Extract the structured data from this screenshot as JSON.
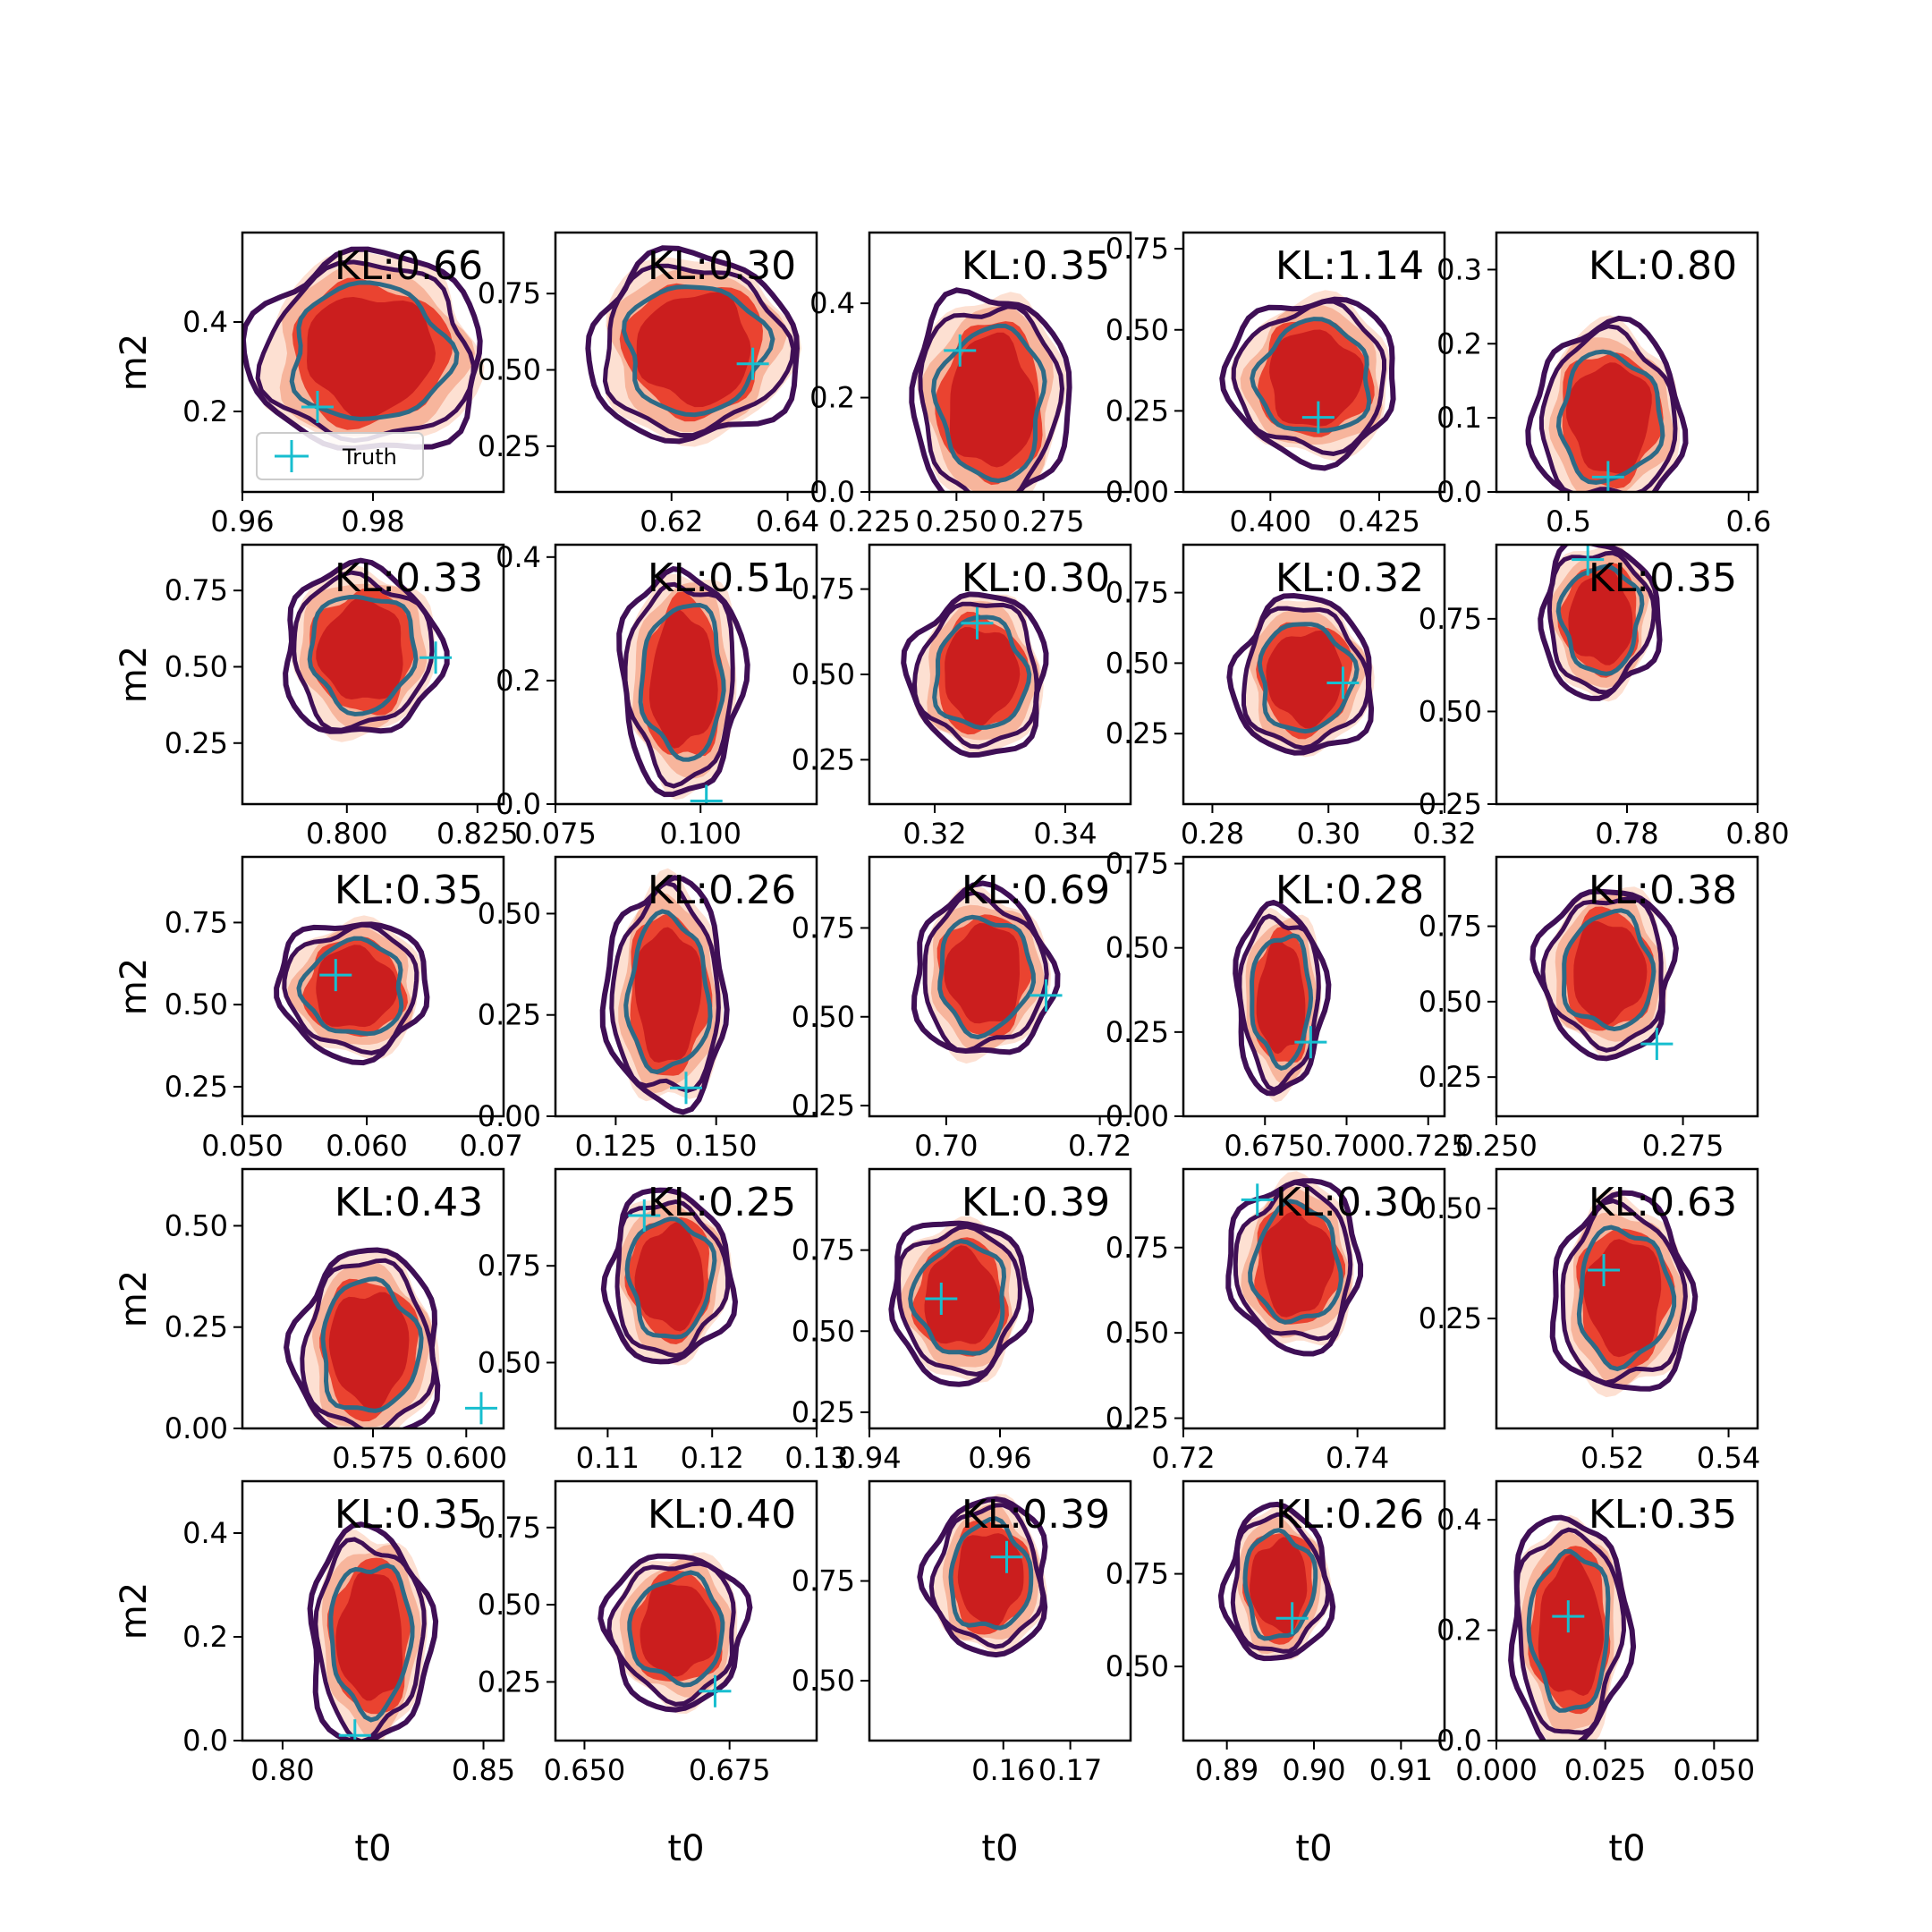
{
  "figure": {
    "type": "grid-of-posterior-contour-panels",
    "rows": 5,
    "cols": 5,
    "xlabel": "t0",
    "ylabel": "m2",
    "legend_label": "Truth",
    "colors": {
      "fill_levels": [
        "#fde0d2",
        "#f7b59c",
        "#ea4330",
        "#cb1e1e"
      ],
      "contour_outer": "#3f0f56",
      "contour_inner": "#2e6a86",
      "truth_marker": "#17becf"
    }
  },
  "chart_data": [
    {
      "row": 0,
      "col": 0,
      "type": "contour",
      "kl": "KL:0.66",
      "xlim": [
        0.96,
        1.0
      ],
      "ylim": [
        0.02,
        0.6
      ],
      "xticks": [
        0.96,
        0.98
      ],
      "xtick_labels": [
        "0.96",
        "0.98"
      ],
      "yticks": [
        0.2,
        0.4
      ],
      "ytick_labels": [
        "0.2",
        "0.4"
      ],
      "center": [
        0.9795,
        0.33
      ],
      "spread": [
        0.012,
        0.16
      ],
      "truth": [
        0.9715,
        0.21
      ]
    },
    {
      "row": 0,
      "col": 1,
      "type": "contour",
      "kl": "KL:0.30",
      "xlim": [
        0.6,
        0.645
      ],
      "ylim": [
        0.1,
        0.95
      ],
      "xticks": [
        0.62,
        0.64
      ],
      "xtick_labels": [
        "0.62",
        "0.64"
      ],
      "yticks": [
        0.25,
        0.5,
        0.75
      ],
      "ytick_labels": [
        "0.25",
        "0.50",
        "0.75"
      ],
      "center": [
        0.624,
        0.57
      ],
      "spread": [
        0.012,
        0.22
      ],
      "truth": [
        0.634,
        0.52
      ]
    },
    {
      "row": 0,
      "col": 2,
      "type": "contour",
      "kl": "KL:0.35",
      "xlim": [
        0.225,
        0.3
      ],
      "ylim": [
        0.0,
        0.55
      ],
      "xticks": [
        0.225,
        0.25,
        0.275
      ],
      "xtick_labels": [
        "0.225",
        "0.250",
        "0.275"
      ],
      "yticks": [
        0.0,
        0.2,
        0.4
      ],
      "ytick_labels": [
        "0.0",
        "0.2",
        "0.4"
      ],
      "center": [
        0.26,
        0.19
      ],
      "spread": [
        0.015,
        0.17
      ],
      "truth": [
        0.251,
        0.3
      ]
    },
    {
      "row": 0,
      "col": 3,
      "type": "contour",
      "kl": "KL:1.14",
      "xlim": [
        0.38,
        0.44
      ],
      "ylim": [
        0.0,
        0.8
      ],
      "xticks": [
        0.4,
        0.425
      ],
      "xtick_labels": [
        "0.400",
        "0.425"
      ],
      "yticks": [
        0.0,
        0.25,
        0.5,
        0.75
      ],
      "ytick_labels": [
        "0.00",
        "0.25",
        "0.50",
        "0.75"
      ],
      "center": [
        0.41,
        0.35
      ],
      "spread": [
        0.013,
        0.18
      ],
      "truth": [
        0.411,
        0.23
      ]
    },
    {
      "row": 0,
      "col": 4,
      "type": "contour",
      "kl": "KL:0.80",
      "xlim": [
        0.46,
        0.605
      ],
      "ylim": [
        0.0,
        0.35
      ],
      "xticks": [
        0.5,
        0.6
      ],
      "xtick_labels": [
        "0.5",
        "0.6"
      ],
      "yticks": [
        0.0,
        0.1,
        0.2,
        0.3
      ],
      "ytick_labels": [
        "0.0",
        "0.1",
        "0.2",
        "0.3"
      ],
      "center": [
        0.523,
        0.1
      ],
      "spread": [
        0.028,
        0.09
      ],
      "truth": [
        0.522,
        0.02
      ]
    },
    {
      "row": 1,
      "col": 0,
      "type": "contour",
      "kl": "KL:0.33",
      "xlim": [
        0.78,
        0.83
      ],
      "ylim": [
        0.05,
        0.9
      ],
      "xticks": [
        0.8,
        0.825
      ],
      "xtick_labels": [
        "0.800",
        "0.825"
      ],
      "yticks": [
        0.25,
        0.5,
        0.75
      ],
      "ytick_labels": [
        "0.25",
        "0.50",
        "0.75"
      ],
      "center": [
        0.803,
        0.55
      ],
      "spread": [
        0.01,
        0.2
      ],
      "truth": [
        0.817,
        0.53
      ]
    },
    {
      "row": 1,
      "col": 1,
      "type": "contour",
      "kl": "KL:0.51",
      "xlim": [
        0.075,
        0.12
      ],
      "ylim": [
        0.0,
        0.42
      ],
      "xticks": [
        0.075,
        0.1
      ],
      "xtick_labels": [
        "0.075",
        "0.100"
      ],
      "yticks": [
        0.0,
        0.2,
        0.4
      ],
      "ytick_labels": [
        "0.0",
        "0.2",
        "0.4"
      ],
      "center": [
        0.097,
        0.2
      ],
      "spread": [
        0.007,
        0.13
      ],
      "truth": [
        0.101,
        0.005
      ]
    },
    {
      "row": 1,
      "col": 2,
      "type": "contour",
      "kl": "KL:0.30",
      "xlim": [
        0.31,
        0.35
      ],
      "ylim": [
        0.12,
        0.88
      ],
      "xticks": [
        0.32,
        0.34
      ],
      "xtick_labels": [
        "0.32",
        "0.34"
      ],
      "yticks": [
        0.25,
        0.5,
        0.75
      ],
      "ytick_labels": [
        "0.25",
        "0.50",
        "0.75"
      ],
      "center": [
        0.327,
        0.5
      ],
      "spread": [
        0.007,
        0.17
      ],
      "truth": [
        0.3265,
        0.65
      ]
    },
    {
      "row": 1,
      "col": 3,
      "type": "contour",
      "kl": "KL:0.32",
      "xlim": [
        0.275,
        0.32
      ],
      "ylim": [
        0.0,
        0.92
      ],
      "xticks": [
        0.28,
        0.3,
        0.32
      ],
      "xtick_labels": [
        "0.28",
        "0.30",
        "0.32"
      ],
      "yticks": [
        0.25,
        0.5,
        0.75
      ],
      "ytick_labels": [
        "0.25",
        "0.50",
        "0.75"
      ],
      "center": [
        0.296,
        0.45
      ],
      "spread": [
        0.008,
        0.2
      ],
      "truth": [
        0.3025,
        0.43
      ]
    },
    {
      "row": 1,
      "col": 4,
      "type": "contour",
      "kl": "KL:0.35",
      "xlim": [
        0.76,
        0.8
      ],
      "ylim": [
        0.25,
        0.95
      ],
      "xticks": [
        0.78,
        0.8
      ],
      "xtick_labels": [
        "0.78",
        "0.80"
      ],
      "yticks": [
        0.25,
        0.5,
        0.75
      ],
      "ytick_labels": [
        "0.25",
        "0.50",
        "0.75"
      ],
      "center": [
        0.776,
        0.75
      ],
      "spread": [
        0.006,
        0.15
      ],
      "truth": [
        0.774,
        0.91
      ]
    },
    {
      "row": 2,
      "col": 0,
      "type": "contour",
      "kl": "KL:0.35",
      "xlim": [
        0.05,
        0.071
      ],
      "ylim": [
        0.16,
        0.95
      ],
      "xticks": [
        0.05,
        0.06,
        0.07
      ],
      "xtick_labels": [
        "0.050",
        "0.060",
        "0.07"
      ],
      "yticks": [
        0.25,
        0.5,
        0.75
      ],
      "ytick_labels": [
        "0.25",
        "0.50",
        "0.75"
      ],
      "center": [
        0.059,
        0.55
      ],
      "spread": [
        0.004,
        0.15
      ],
      "truth": [
        0.0575,
        0.59
      ]
    },
    {
      "row": 2,
      "col": 1,
      "type": "contour",
      "kl": "KL:0.26",
      "xlim": [
        0.11,
        0.175
      ],
      "ylim": [
        0.0,
        0.64
      ],
      "xticks": [
        0.125,
        0.15
      ],
      "xtick_labels": [
        "0.125",
        "0.150"
      ],
      "yticks": [
        0.0,
        0.25,
        0.5
      ],
      "ytick_labels": [
        "0.00",
        "0.25",
        "0.50"
      ],
      "center": [
        0.138,
        0.3
      ],
      "spread": [
        0.01,
        0.2
      ],
      "truth": [
        0.1425,
        0.07
      ]
    },
    {
      "row": 2,
      "col": 2,
      "type": "contour",
      "kl": "KL:0.69",
      "xlim": [
        0.69,
        0.724
      ],
      "ylim": [
        0.22,
        0.95
      ],
      "xticks": [
        0.7,
        0.72
      ],
      "xtick_labels": [
        "0.70",
        "0.72"
      ],
      "yticks": [
        0.25,
        0.5,
        0.75
      ],
      "ytick_labels": [
        "0.25",
        "0.50",
        "0.75"
      ],
      "center": [
        0.705,
        0.62
      ],
      "spread": [
        0.006,
        0.17
      ],
      "truth": [
        0.713,
        0.56
      ]
    },
    {
      "row": 2,
      "col": 3,
      "type": "contour",
      "kl": "KL:0.28",
      "xlim": [
        0.65,
        0.73
      ],
      "ylim": [
        0.0,
        0.77
      ],
      "xticks": [
        0.675,
        0.7,
        0.725
      ],
      "xtick_labels": [
        "0.675",
        "0.700",
        "0.725"
      ],
      "yticks": [
        0.0,
        0.25,
        0.5,
        0.75
      ],
      "ytick_labels": [
        "0.00",
        "0.25",
        "0.50",
        "0.75"
      ],
      "center": [
        0.68,
        0.35
      ],
      "spread": [
        0.009,
        0.2
      ],
      "truth": [
        0.689,
        0.22
      ]
    },
    {
      "row": 2,
      "col": 4,
      "type": "contour",
      "kl": "KL:0.38",
      "xlim": [
        0.25,
        0.285
      ],
      "ylim": [
        0.12,
        0.98
      ],
      "xticks": [
        0.25,
        0.275
      ],
      "xtick_labels": [
        "0.250",
        "0.275"
      ],
      "yticks": [
        0.25,
        0.5,
        0.75
      ],
      "ytick_labels": [
        "0.25",
        "0.50",
        "0.75"
      ],
      "center": [
        0.265,
        0.6
      ],
      "spread": [
        0.006,
        0.2
      ],
      "truth": [
        0.2715,
        0.36
      ]
    },
    {
      "row": 3,
      "col": 0,
      "type": "contour",
      "kl": "KL:0.43",
      "xlim": [
        0.54,
        0.61
      ],
      "ylim": [
        0.0,
        0.64
      ],
      "xticks": [
        0.575,
        0.6
      ],
      "xtick_labels": [
        "0.575",
        "0.600"
      ],
      "yticks": [
        0.0,
        0.25,
        0.5
      ],
      "ytick_labels": [
        "0.00",
        "0.25",
        "0.50"
      ],
      "center": [
        0.574,
        0.2
      ],
      "spread": [
        0.013,
        0.17
      ],
      "truth": [
        0.604,
        0.05
      ]
    },
    {
      "row": 3,
      "col": 1,
      "type": "contour",
      "kl": "KL:0.25",
      "xlim": [
        0.105,
        0.13
      ],
      "ylim": [
        0.33,
        1.0
      ],
      "xticks": [
        0.11,
        0.12,
        0.13
      ],
      "xtick_labels": [
        "0.11",
        "0.12",
        "0.13"
      ],
      "yticks": [
        0.5,
        0.75
      ],
      "ytick_labels": [
        "0.50",
        "0.75"
      ],
      "center": [
        0.116,
        0.72
      ],
      "spread": [
        0.004,
        0.16
      ],
      "truth": [
        0.1135,
        0.88
      ]
    },
    {
      "row": 3,
      "col": 2,
      "type": "contour",
      "kl": "KL:0.39",
      "xlim": [
        0.94,
        0.98
      ],
      "ylim": [
        0.2,
        1.0
      ],
      "xticks": [
        0.94,
        0.96
      ],
      "xtick_labels": [
        "0.94",
        "0.96"
      ],
      "yticks": [
        0.25,
        0.5,
        0.75
      ],
      "ytick_labels": [
        "0.25",
        "0.50",
        "0.75"
      ],
      "center": [
        0.954,
        0.6
      ],
      "spread": [
        0.007,
        0.18
      ],
      "truth": [
        0.951,
        0.6
      ]
    },
    {
      "row": 3,
      "col": 3,
      "type": "contour",
      "kl": "KL:0.30",
      "xlim": [
        0.72,
        0.75
      ],
      "ylim": [
        0.22,
        0.98
      ],
      "xticks": [
        0.72,
        0.74
      ],
      "xtick_labels": [
        "0.72",
        "0.74"
      ],
      "yticks": [
        0.25,
        0.5,
        0.75
      ],
      "ytick_labels": [
        "0.25",
        "0.50",
        "0.75"
      ],
      "center": [
        0.733,
        0.7
      ],
      "spread": [
        0.005,
        0.18
      ],
      "truth": [
        0.7285,
        0.89
      ]
    },
    {
      "row": 3,
      "col": 4,
      "type": "contour",
      "kl": "KL:0.63",
      "xlim": [
        0.5,
        0.545
      ],
      "ylim": [
        0.0,
        0.59
      ],
      "xticks": [
        0.52,
        0.54
      ],
      "xtick_labels": [
        "0.52",
        "0.54"
      ],
      "yticks": [
        0.25,
        0.5
      ],
      "ytick_labels": [
        "0.25",
        "0.50"
      ],
      "center": [
        0.522,
        0.3
      ],
      "spread": [
        0.008,
        0.16
      ],
      "truth": [
        0.5185,
        0.36
      ]
    },
    {
      "row": 4,
      "col": 0,
      "type": "contour",
      "kl": "KL:0.35",
      "xlim": [
        0.79,
        0.855
      ],
      "ylim": [
        0.0,
        0.5
      ],
      "xticks": [
        0.8,
        0.85
      ],
      "xtick_labels": [
        "0.80",
        "0.85"
      ],
      "yticks": [
        0.0,
        0.2,
        0.4
      ],
      "ytick_labels": [
        "0.0",
        "0.2",
        "0.4"
      ],
      "center": [
        0.822,
        0.2
      ],
      "spread": [
        0.01,
        0.15
      ],
      "truth": [
        0.818,
        0.01
      ]
    },
    {
      "row": 4,
      "col": 1,
      "type": "contour",
      "kl": "KL:0.40",
      "xlim": [
        0.645,
        0.69
      ],
      "ylim": [
        0.06,
        0.9
      ],
      "xticks": [
        0.65,
        0.675
      ],
      "xtick_labels": [
        "0.650",
        "0.675"
      ],
      "yticks": [
        0.25,
        0.5,
        0.75
      ],
      "ytick_labels": [
        "0.25",
        "0.50",
        "0.75"
      ],
      "center": [
        0.666,
        0.42
      ],
      "spread": [
        0.008,
        0.18
      ],
      "truth": [
        0.6725,
        0.22
      ]
    },
    {
      "row": 4,
      "col": 2,
      "type": "contour",
      "kl": "KL:0.39",
      "xlim": [
        0.14,
        0.179
      ],
      "ylim": [
        0.35,
        1.0
      ],
      "xticks": [
        0.16,
        0.17
      ],
      "xtick_labels": [
        "0.16",
        "0.17"
      ],
      "yticks": [
        0.5,
        0.75
      ],
      "ytick_labels": [
        "0.50",
        "0.75"
      ],
      "center": [
        0.158,
        0.76
      ],
      "spread": [
        0.006,
        0.14
      ],
      "truth": [
        0.1605,
        0.81
      ]
    },
    {
      "row": 4,
      "col": 3,
      "type": "contour",
      "kl": "KL:0.26",
      "xlim": [
        0.885,
        0.915
      ],
      "ylim": [
        0.3,
        1.0
      ],
      "xticks": [
        0.89,
        0.9,
        0.91
      ],
      "xtick_labels": [
        "0.89",
        "0.90",
        "0.91"
      ],
      "yticks": [
        0.5,
        0.75
      ],
      "ytick_labels": [
        "0.50",
        "0.75"
      ],
      "center": [
        0.896,
        0.72
      ],
      "spread": [
        0.004,
        0.15
      ],
      "truth": [
        0.8975,
        0.63
      ]
    },
    {
      "row": 4,
      "col": 4,
      "type": "contour",
      "kl": "KL:0.35",
      "xlim": [
        0.0,
        0.06
      ],
      "ylim": [
        0.0,
        0.47
      ],
      "xticks": [
        0.0,
        0.025,
        0.05
      ],
      "xtick_labels": [
        "0.000",
        "0.025",
        "0.050"
      ],
      "yticks": [
        0.0,
        0.2,
        0.4
      ],
      "ytick_labels": [
        "0.0",
        "0.2",
        "0.4"
      ],
      "center": [
        0.017,
        0.2
      ],
      "spread": [
        0.009,
        0.15
      ],
      "truth": [
        0.0165,
        0.225
      ]
    }
  ]
}
